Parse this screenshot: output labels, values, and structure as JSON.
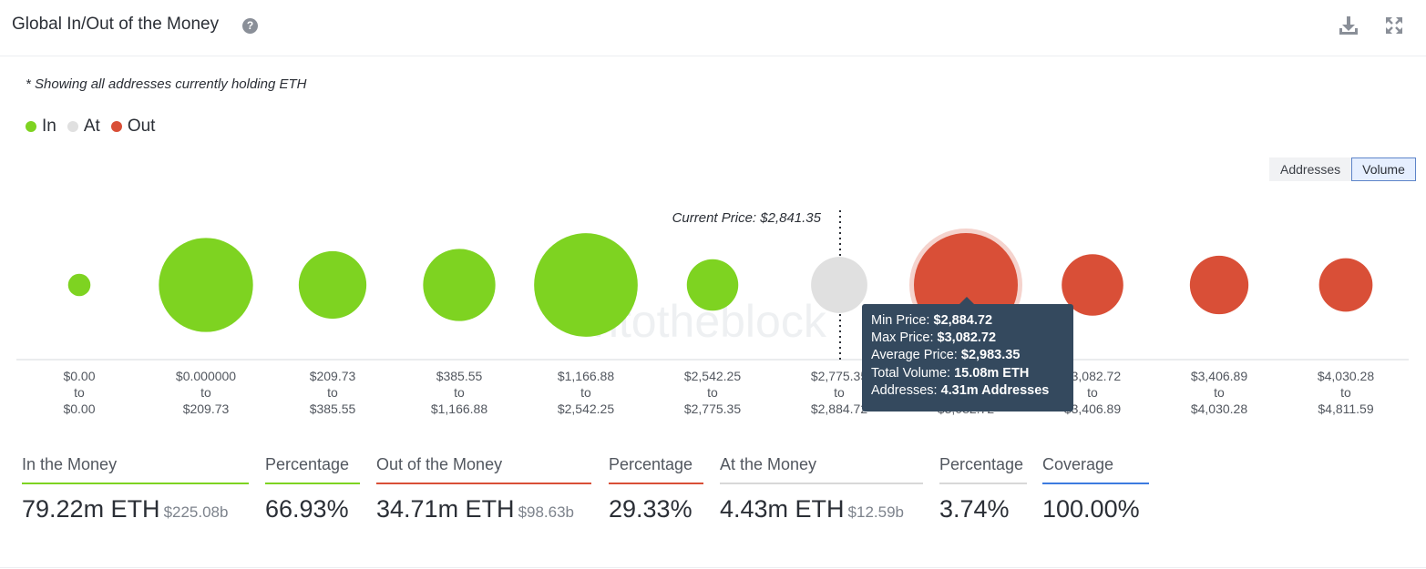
{
  "header": {
    "title": "Global In/Out of the Money",
    "help_icon": "question-circle-icon",
    "download_icon": "download-icon",
    "expand_icon": "expand-icon"
  },
  "note": "* Showing all addresses currently holding ETH",
  "legend": [
    {
      "label": "In",
      "color": "#7ed321"
    },
    {
      "label": "At",
      "color": "#e0e0e0"
    },
    {
      "label": "Out",
      "color": "#d94f37"
    }
  ],
  "toggle": {
    "addresses_label": "Addresses",
    "volume_label": "Volume",
    "selected": "Volume"
  },
  "chart_data": {
    "type": "bubble",
    "current_price_label": "Current Price: $2,841.35",
    "current_price": 2841.35,
    "watermark": "intotheblock",
    "size_metric": "Total Volume (ETH)",
    "bins": [
      {
        "from": "$0.00",
        "to_word": "to",
        "to": "$0.00",
        "status": "in",
        "volume_m": 0.7
      },
      {
        "from": "$0.000000",
        "to_word": "to",
        "to": "$209.73",
        "status": "in",
        "volume_m": 12.4
      },
      {
        "from": "$209.73",
        "to_word": "to",
        "to": "$385.55",
        "status": "in",
        "volume_m": 6.4
      },
      {
        "from": "$385.55",
        "to_word": "to",
        "to": "$1,166.88",
        "status": "in",
        "volume_m": 7.3
      },
      {
        "from": "$1,166.88",
        "to_word": "to",
        "to": "$2,542.25",
        "status": "in",
        "volume_m": 15.0
      },
      {
        "from": "$2,542.25",
        "to_word": "to",
        "to": "$2,775.35",
        "status": "in",
        "volume_m": 3.7
      },
      {
        "from": "$2,775.35",
        "to_word": "to",
        "to": "$2,884.72",
        "status": "at",
        "volume_m": 4.43
      },
      {
        "from": "$2,884.72",
        "to_word": "to",
        "to": "$3,082.72",
        "status": "out",
        "volume_m": 15.08,
        "highlighted": true
      },
      {
        "from": "$3,082.72",
        "to_word": "to",
        "to": "$3,406.89",
        "status": "out",
        "volume_m": 5.3
      },
      {
        "from": "$3,406.89",
        "to_word": "to",
        "to": "$4,030.28",
        "status": "out",
        "volume_m": 4.8
      },
      {
        "from": "$4,030.28",
        "to_word": "to",
        "to": "$4,811.59",
        "status": "out",
        "volume_m": 4.0
      }
    ],
    "tooltip": {
      "min_label": "Min Price:",
      "min_value": "$2,884.72",
      "max_label": "Max Price:",
      "max_value": "$3,082.72",
      "avg_label": "Average Price:",
      "avg_value": "$2,983.35",
      "vol_label": "Total Volume:",
      "vol_value": "15.08m ETH",
      "addr_label": "Addresses:",
      "addr_value": "4.31m Addresses"
    }
  },
  "stats": {
    "in": {
      "label": "In the Money",
      "value": "79.22m ETH",
      "sub": "$225.08b",
      "color": "#7ed321"
    },
    "in_pct": {
      "label": "Percentage",
      "value": "66.93%",
      "color": "#7ed321"
    },
    "out": {
      "label": "Out of the Money",
      "value": "34.71m ETH",
      "sub": "$98.63b",
      "color": "#d94f37"
    },
    "out_pct": {
      "label": "Percentage",
      "value": "29.33%",
      "color": "#d94f37"
    },
    "at": {
      "label": "At the Money",
      "value": "4.43m ETH",
      "sub": "$12.59b",
      "color": "#d8d8d8"
    },
    "at_pct": {
      "label": "Percentage",
      "value": "3.74%",
      "color": "#d8d8d8"
    },
    "coverage": {
      "label": "Coverage",
      "value": "100.00%",
      "color": "#3d7be0"
    }
  }
}
